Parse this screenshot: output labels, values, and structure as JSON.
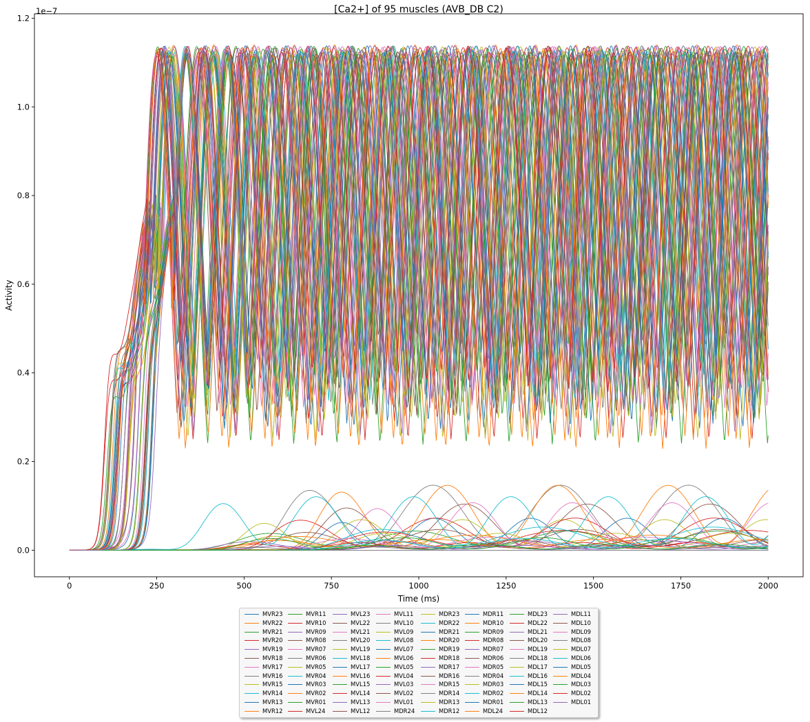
{
  "chart_data": {
    "type": "line",
    "title": "[Ca2+] of 95 muscles (AVB_DB C2)",
    "xlabel": "Time (ms)",
    "ylabel": "Activity",
    "offset_text": "1e−7",
    "xlim": [
      -100,
      2100
    ],
    "ylim": [
      -0.06,
      1.21
    ],
    "x_ticks": [
      0,
      250,
      500,
      750,
      1000,
      1250,
      1500,
      1750,
      2000
    ],
    "x_tick_labels": [
      "0",
      "250",
      "500",
      "750",
      "1000",
      "1250",
      "1500",
      "1750",
      "2000"
    ],
    "y_ticks": [
      0.0,
      0.2,
      0.4,
      0.6,
      0.8,
      1.0,
      1.2
    ],
    "y_tick_labels": [
      "0.0",
      "0.2",
      "0.4",
      "0.6",
      "0.8",
      "1.0",
      "1.2"
    ],
    "grid": false,
    "legend_placement": "below plot, centered",
    "legend_columns": 8,
    "palette": [
      "#1f77b4",
      "#ff7f0e",
      "#2ca02c",
      "#d62728",
      "#9467bd",
      "#8c564b",
      "#e377c2",
      "#7f7f7f",
      "#bcbd22",
      "#17becf"
    ],
    "series_names": [
      "MVR23",
      "MVR22",
      "MVR21",
      "MVR20",
      "MVR19",
      "MVR18",
      "MVR17",
      "MVR16",
      "MVR15",
      "MVR14",
      "MVR13",
      "MVR12",
      "MVR11",
      "MVR10",
      "MVR09",
      "MVR08",
      "MVR07",
      "MVR06",
      "MVR05",
      "MVR04",
      "MVR03",
      "MVR02",
      "MVR01",
      "MVL24",
      "MVL23",
      "MVL22",
      "MVL21",
      "MVL20",
      "MVL19",
      "MVL18",
      "MVL17",
      "MVL16",
      "MVL15",
      "MVL14",
      "MVL13",
      "MVL12",
      "MVL11",
      "MVL10",
      "MVL09",
      "MVL08",
      "MVL07",
      "MVL06",
      "MVL05",
      "MVL04",
      "MVL03",
      "MVL02",
      "MVL01",
      "MDR24",
      "MDR23",
      "MDR22",
      "MDR21",
      "MDR20",
      "MDR19",
      "MDR18",
      "MDR17",
      "MDR16",
      "MDR15",
      "MDR14",
      "MDR13",
      "MDR12",
      "MDR11",
      "MDR10",
      "MDR09",
      "MDR08",
      "MDR07",
      "MDR06",
      "MDR05",
      "MDR04",
      "MDR03",
      "MDR02",
      "MDR01",
      "MDL24",
      "MDL23",
      "MDL22",
      "MDL21",
      "MDL20",
      "MDL19",
      "MDL18",
      "MDL17",
      "MDL16",
      "MDL15",
      "MDL14",
      "MDL13",
      "MDL12",
      "MDL11",
      "MDL10",
      "MDL09",
      "MDL08",
      "MDL07",
      "MDL06",
      "MDL05",
      "MDL04",
      "MDL03",
      "MDL02",
      "MDL01"
    ],
    "series_profiles": {
      "oscillating_count": 60,
      "peak_value": 1.14,
      "onset_range_ms": [
        100,
        250
      ],
      "first_plateau_value": 0.5,
      "first_peak_time_range_ms": [
        240,
        340
      ],
      "period_range_ms": [
        110,
        125
      ],
      "small_amplitude_values": [
        0.02,
        0.15
      ]
    }
  }
}
